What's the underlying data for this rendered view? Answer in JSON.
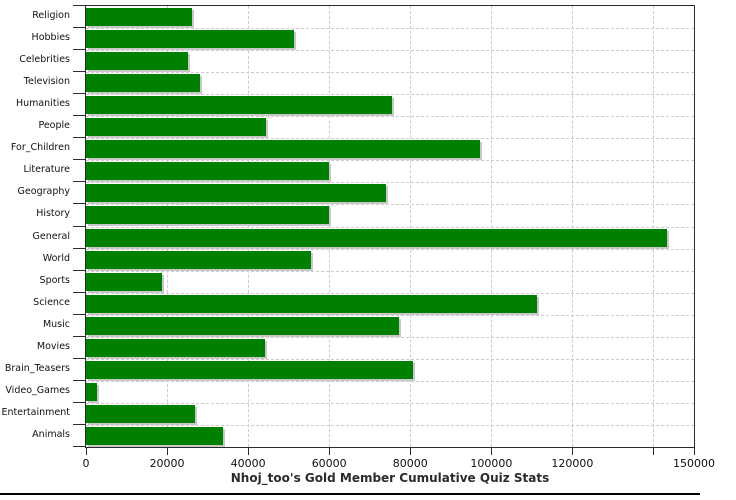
{
  "chart_data": {
    "type": "bar",
    "orientation": "horizontal",
    "title": "Nhoj_too's Gold Member Cumulative Quiz Stats",
    "categories": [
      "Religion",
      "Hobbies",
      "Celebrities",
      "Television",
      "Humanities",
      "People",
      "For_Children",
      "Literature",
      "Geography",
      "History",
      "General",
      "World",
      "Sports",
      "Science",
      "Music",
      "Movies",
      "Brain_Teasers",
      "Video_Games",
      "Entertainment",
      "Animals"
    ],
    "values": [
      26200,
      51300,
      25100,
      28100,
      75500,
      44400,
      97200,
      60000,
      74000,
      60000,
      143400,
      55500,
      18800,
      111200,
      77300,
      44200,
      80700,
      2600,
      27000,
      33700
    ],
    "xlim": [
      0,
      150000
    ],
    "x_ticks": [
      {
        "value": 0,
        "label": "0"
      },
      {
        "value": 20000,
        "label": "20000"
      },
      {
        "value": 40000,
        "label": "40000"
      },
      {
        "value": 60000,
        "label": "60000"
      },
      {
        "value": 80000,
        "label": "80000"
      },
      {
        "value": 100000,
        "label": "100000"
      },
      {
        "value": 120000,
        "label": "120000"
      },
      {
        "value": 140000,
        "label": ""
      },
      {
        "value": 150000,
        "label": "150000"
      }
    ],
    "grid": true,
    "legend": "none",
    "bar_color": "#008000",
    "bar_shadow_color": "#c8c8c8",
    "gridline_color": "#cccccc",
    "axis_color": "#2b2b2b"
  }
}
